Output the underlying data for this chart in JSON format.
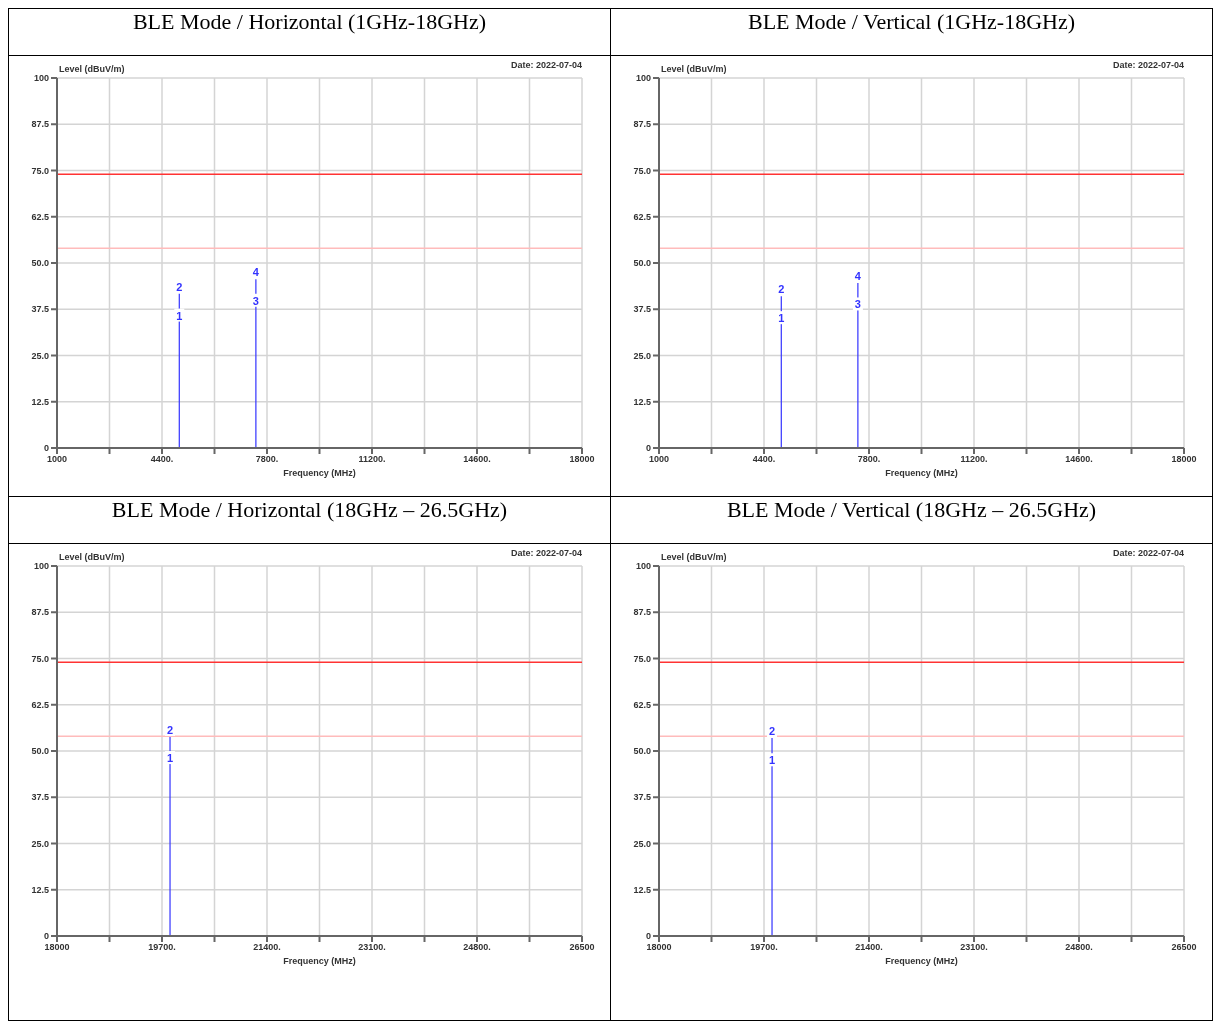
{
  "chart_data": [
    {
      "type": "line",
      "title": "BLE Mode / Horizontal (1GHz-18GHz)",
      "xlabel": "Frequency (MHz)",
      "ylabel": "Level (dBuV/m)",
      "xlim": [
        1000,
        18000
      ],
      "xticks": [
        1000,
        {
          "value": 2700,
          "label": null
        },
        {
          "value": 4400,
          "label": "4400."
        },
        {
          "value": 6100,
          "label": null
        },
        {
          "value": 7800,
          "label": "7800."
        },
        {
          "value": 9500,
          "label": null
        },
        {
          "value": 11200,
          "label": "11200."
        },
        {
          "value": 12900,
          "label": null
        },
        {
          "value": 14600,
          "label": "14600."
        },
        {
          "value": 16300,
          "label": null
        },
        18000
      ],
      "ylim": [
        0,
        100
      ],
      "yticks": [
        0,
        12.5,
        {
          "value": 25,
          "label": "25.0"
        },
        37.5,
        {
          "value": 50,
          "label": "50.0"
        },
        62.5,
        {
          "value": 75,
          "label": "75.0"
        },
        87.5,
        100
      ],
      "grid": true,
      "series": [
        {
          "color": "#3333ff",
          "x": [
            4960,
            4960
          ],
          "values": [
            0,
            41.7
          ]
        },
        {
          "color": "#3333ff",
          "x": [
            7440,
            7440
          ],
          "values": [
            0,
            45.6
          ]
        }
      ],
      "ref_lines": [
        {
          "axis": "y",
          "value": 74,
          "color": "#ff3333"
        },
        {
          "axis": "y",
          "value": 54,
          "color": "#ffbbbb"
        }
      ],
      "annotations": [
        "Date: 2022-07-04",
        {
          "text": "1",
          "x": 4960,
          "y": 33.9
        },
        {
          "text": "2",
          "x": 4960,
          "y": 41.7
        },
        {
          "text": "3",
          "x": 7440,
          "y": 37.9
        },
        {
          "text": "4",
          "x": 7440,
          "y": 45.6
        }
      ]
    },
    {
      "type": "line",
      "title": "BLE Mode / Vertical (1GHz-18GHz)",
      "xlabel": "Frequency (MHz)",
      "ylabel": "Level (dBuV/m)",
      "xlim": [
        1000,
        18000
      ],
      "xticks": [
        1000,
        {
          "value": 2700,
          "label": null
        },
        {
          "value": 4400,
          "label": "4400."
        },
        {
          "value": 6100,
          "label": null
        },
        {
          "value": 7800,
          "label": "7800."
        },
        {
          "value": 9500,
          "label": null
        },
        {
          "value": 11200,
          "label": "11200."
        },
        {
          "value": 12900,
          "label": null
        },
        {
          "value": 14600,
          "label": "14600."
        },
        {
          "value": 16300,
          "label": null
        },
        18000
      ],
      "ylim": [
        0,
        100
      ],
      "yticks": [
        0,
        12.5,
        {
          "value": 25,
          "label": "25.0"
        },
        37.5,
        {
          "value": 50,
          "label": "50.0"
        },
        62.5,
        {
          "value": 75,
          "label": "75.0"
        },
        87.5,
        100
      ],
      "grid": true,
      "series": [
        {
          "color": "#3333ff",
          "x": [
            4960,
            4960
          ],
          "values": [
            0,
            41
          ]
        },
        {
          "color": "#3333ff",
          "x": [
            7440,
            7440
          ],
          "values": [
            0,
            44.6
          ]
        }
      ],
      "ref_lines": [
        {
          "axis": "y",
          "value": 74,
          "color": "#ff3333"
        },
        {
          "axis": "y",
          "value": 54,
          "color": "#ffbbbb"
        }
      ],
      "annotations": [
        "Date: 2022-07-04",
        {
          "text": "1",
          "x": 4960,
          "y": 33.2
        },
        {
          "text": "2",
          "x": 4960,
          "y": 41
        },
        {
          "text": "3",
          "x": 7440,
          "y": 36.9
        },
        {
          "text": "4",
          "x": 7440,
          "y": 44.6
        }
      ]
    },
    {
      "type": "line",
      "title": "BLE Mode / Horizontal (18GHz – 26.5GHz)",
      "xlabel": "Frequency (MHz)",
      "ylabel": "Level (dBuV/m)",
      "xlim": [
        18000,
        26500
      ],
      "xticks": [
        18000,
        {
          "value": 18850,
          "label": null
        },
        {
          "value": 19700,
          "label": "19700."
        },
        {
          "value": 20550,
          "label": null
        },
        {
          "value": 21400,
          "label": "21400."
        },
        {
          "value": 22250,
          "label": null
        },
        {
          "value": 23100,
          "label": "23100."
        },
        {
          "value": 23950,
          "label": null
        },
        {
          "value": 24800,
          "label": "24800."
        },
        {
          "value": 25650,
          "label": null
        },
        26500
      ],
      "ylim": [
        0,
        100
      ],
      "yticks": [
        0,
        12.5,
        {
          "value": 25,
          "label": "25.0"
        },
        37.5,
        {
          "value": 50,
          "label": "50.0"
        },
        62.5,
        {
          "value": 75,
          "label": "75.0"
        },
        87.5,
        100
      ],
      "grid": true,
      "series": [
        {
          "color": "#3333ff",
          "x": [
            19830,
            19830
          ],
          "values": [
            0,
            53.8
          ]
        }
      ],
      "ref_lines": [
        {
          "axis": "y",
          "value": 74,
          "color": "#ff3333"
        },
        {
          "axis": "y",
          "value": 54,
          "color": "#ffbbbb"
        }
      ],
      "annotations": [
        "Date: 2022-07-04",
        {
          "text": "1",
          "x": 19830,
          "y": 46.2
        },
        {
          "text": "2",
          "x": 19830,
          "y": 53.8
        }
      ]
    },
    {
      "type": "line",
      "title": "BLE Mode / Vertical (18GHz – 26.5GHz)",
      "xlabel": "Frequency (MHz)",
      "ylabel": "Level (dBuV/m)",
      "xlim": [
        18000,
        26500
      ],
      "xticks": [
        18000,
        {
          "value": 18850,
          "label": null
        },
        {
          "value": 19700,
          "label": "19700."
        },
        {
          "value": 20550,
          "label": null
        },
        {
          "value": 21400,
          "label": "21400."
        },
        {
          "value": 22250,
          "label": null
        },
        {
          "value": 23100,
          "label": "23100."
        },
        {
          "value": 23950,
          "label": null
        },
        {
          "value": 24800,
          "label": "24800."
        },
        {
          "value": 25650,
          "label": null
        },
        26500
      ],
      "ylim": [
        0,
        100
      ],
      "yticks": [
        0,
        12.5,
        {
          "value": 25,
          "label": "25.0"
        },
        37.5,
        {
          "value": 50,
          "label": "50.0"
        },
        62.5,
        {
          "value": 75,
          "label": "75.0"
        },
        87.5,
        100
      ],
      "grid": true,
      "series": [
        {
          "color": "#3333ff",
          "x": [
            19830,
            19830
          ],
          "values": [
            0,
            53.5
          ]
        }
      ],
      "ref_lines": [
        {
          "axis": "y",
          "value": 74,
          "color": "#ff3333"
        },
        {
          "axis": "y",
          "value": 54,
          "color": "#ffbbbb"
        }
      ],
      "annotations": [
        "Date: 2022-07-04",
        {
          "text": "1",
          "x": 19830,
          "y": 45.6
        },
        {
          "text": "2",
          "x": 19830,
          "y": 53.5
        }
      ]
    }
  ]
}
